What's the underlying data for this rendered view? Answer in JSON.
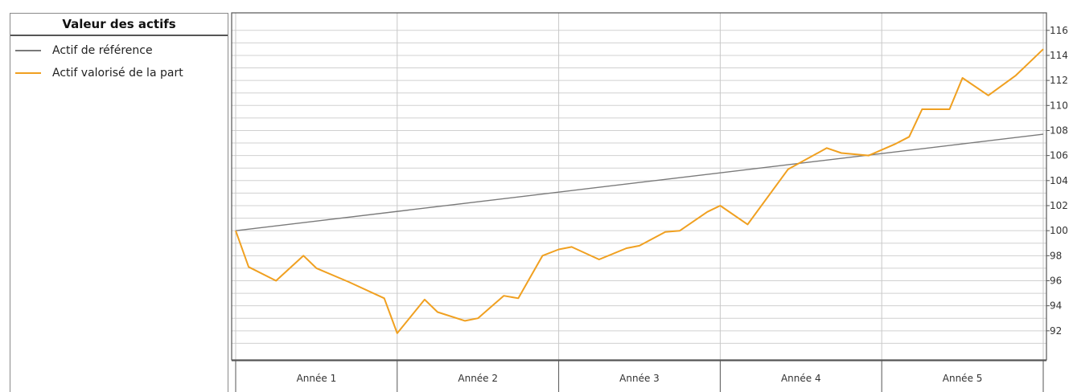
{
  "legend": {
    "title": "Valeur des actifs",
    "items": [
      {
        "label": "Actif de référence",
        "color": "#7a7a7a"
      },
      {
        "label": "Actif valorisé de la part",
        "color": "#f0a020"
      }
    ]
  },
  "chart_data": {
    "type": "line",
    "categories": [
      "Année 1",
      "Année 2",
      "Année 3",
      "Année 4",
      "Année 5"
    ],
    "x_range": [
      0,
      5
    ],
    "ylim": [
      90,
      116.5
    ],
    "y_ticks": [
      92,
      94,
      96,
      98,
      100,
      102,
      104,
      106,
      108,
      110,
      112,
      114,
      116
    ],
    "grid": true,
    "legend_position": "left",
    "series": [
      {
        "name": "Actif de référence",
        "color": "#7a7a7a",
        "points": [
          [
            0,
            100
          ],
          [
            5,
            107.7
          ]
        ]
      },
      {
        "name": "Actif valorisé de la part",
        "color": "#f0a020",
        "points": [
          [
            0,
            100
          ],
          [
            0.08,
            97.1
          ],
          [
            0.25,
            96.0
          ],
          [
            0.42,
            98.0
          ],
          [
            0.5,
            97.0
          ],
          [
            0.7,
            95.9
          ],
          [
            0.92,
            94.6
          ],
          [
            1.0,
            91.8
          ],
          [
            1.17,
            94.5
          ],
          [
            1.25,
            93.5
          ],
          [
            1.42,
            92.8
          ],
          [
            1.5,
            93.0
          ],
          [
            1.66,
            94.8
          ],
          [
            1.75,
            94.6
          ],
          [
            1.9,
            98.0
          ],
          [
            2.0,
            98.5
          ],
          [
            2.08,
            98.7
          ],
          [
            2.25,
            97.7
          ],
          [
            2.42,
            98.6
          ],
          [
            2.5,
            98.8
          ],
          [
            2.66,
            99.9
          ],
          [
            2.75,
            100.0
          ],
          [
            2.92,
            101.5
          ],
          [
            3.0,
            102.0
          ],
          [
            3.17,
            100.5
          ],
          [
            3.42,
            104.9
          ],
          [
            3.66,
            106.6
          ],
          [
            3.75,
            106.2
          ],
          [
            3.92,
            106.0
          ],
          [
            4.08,
            106.9
          ],
          [
            4.17,
            107.5
          ],
          [
            4.25,
            109.7
          ],
          [
            4.42,
            109.7
          ],
          [
            4.5,
            112.2
          ],
          [
            4.66,
            110.8
          ],
          [
            4.83,
            112.4
          ],
          [
            5.0,
            114.5
          ]
        ]
      }
    ]
  }
}
